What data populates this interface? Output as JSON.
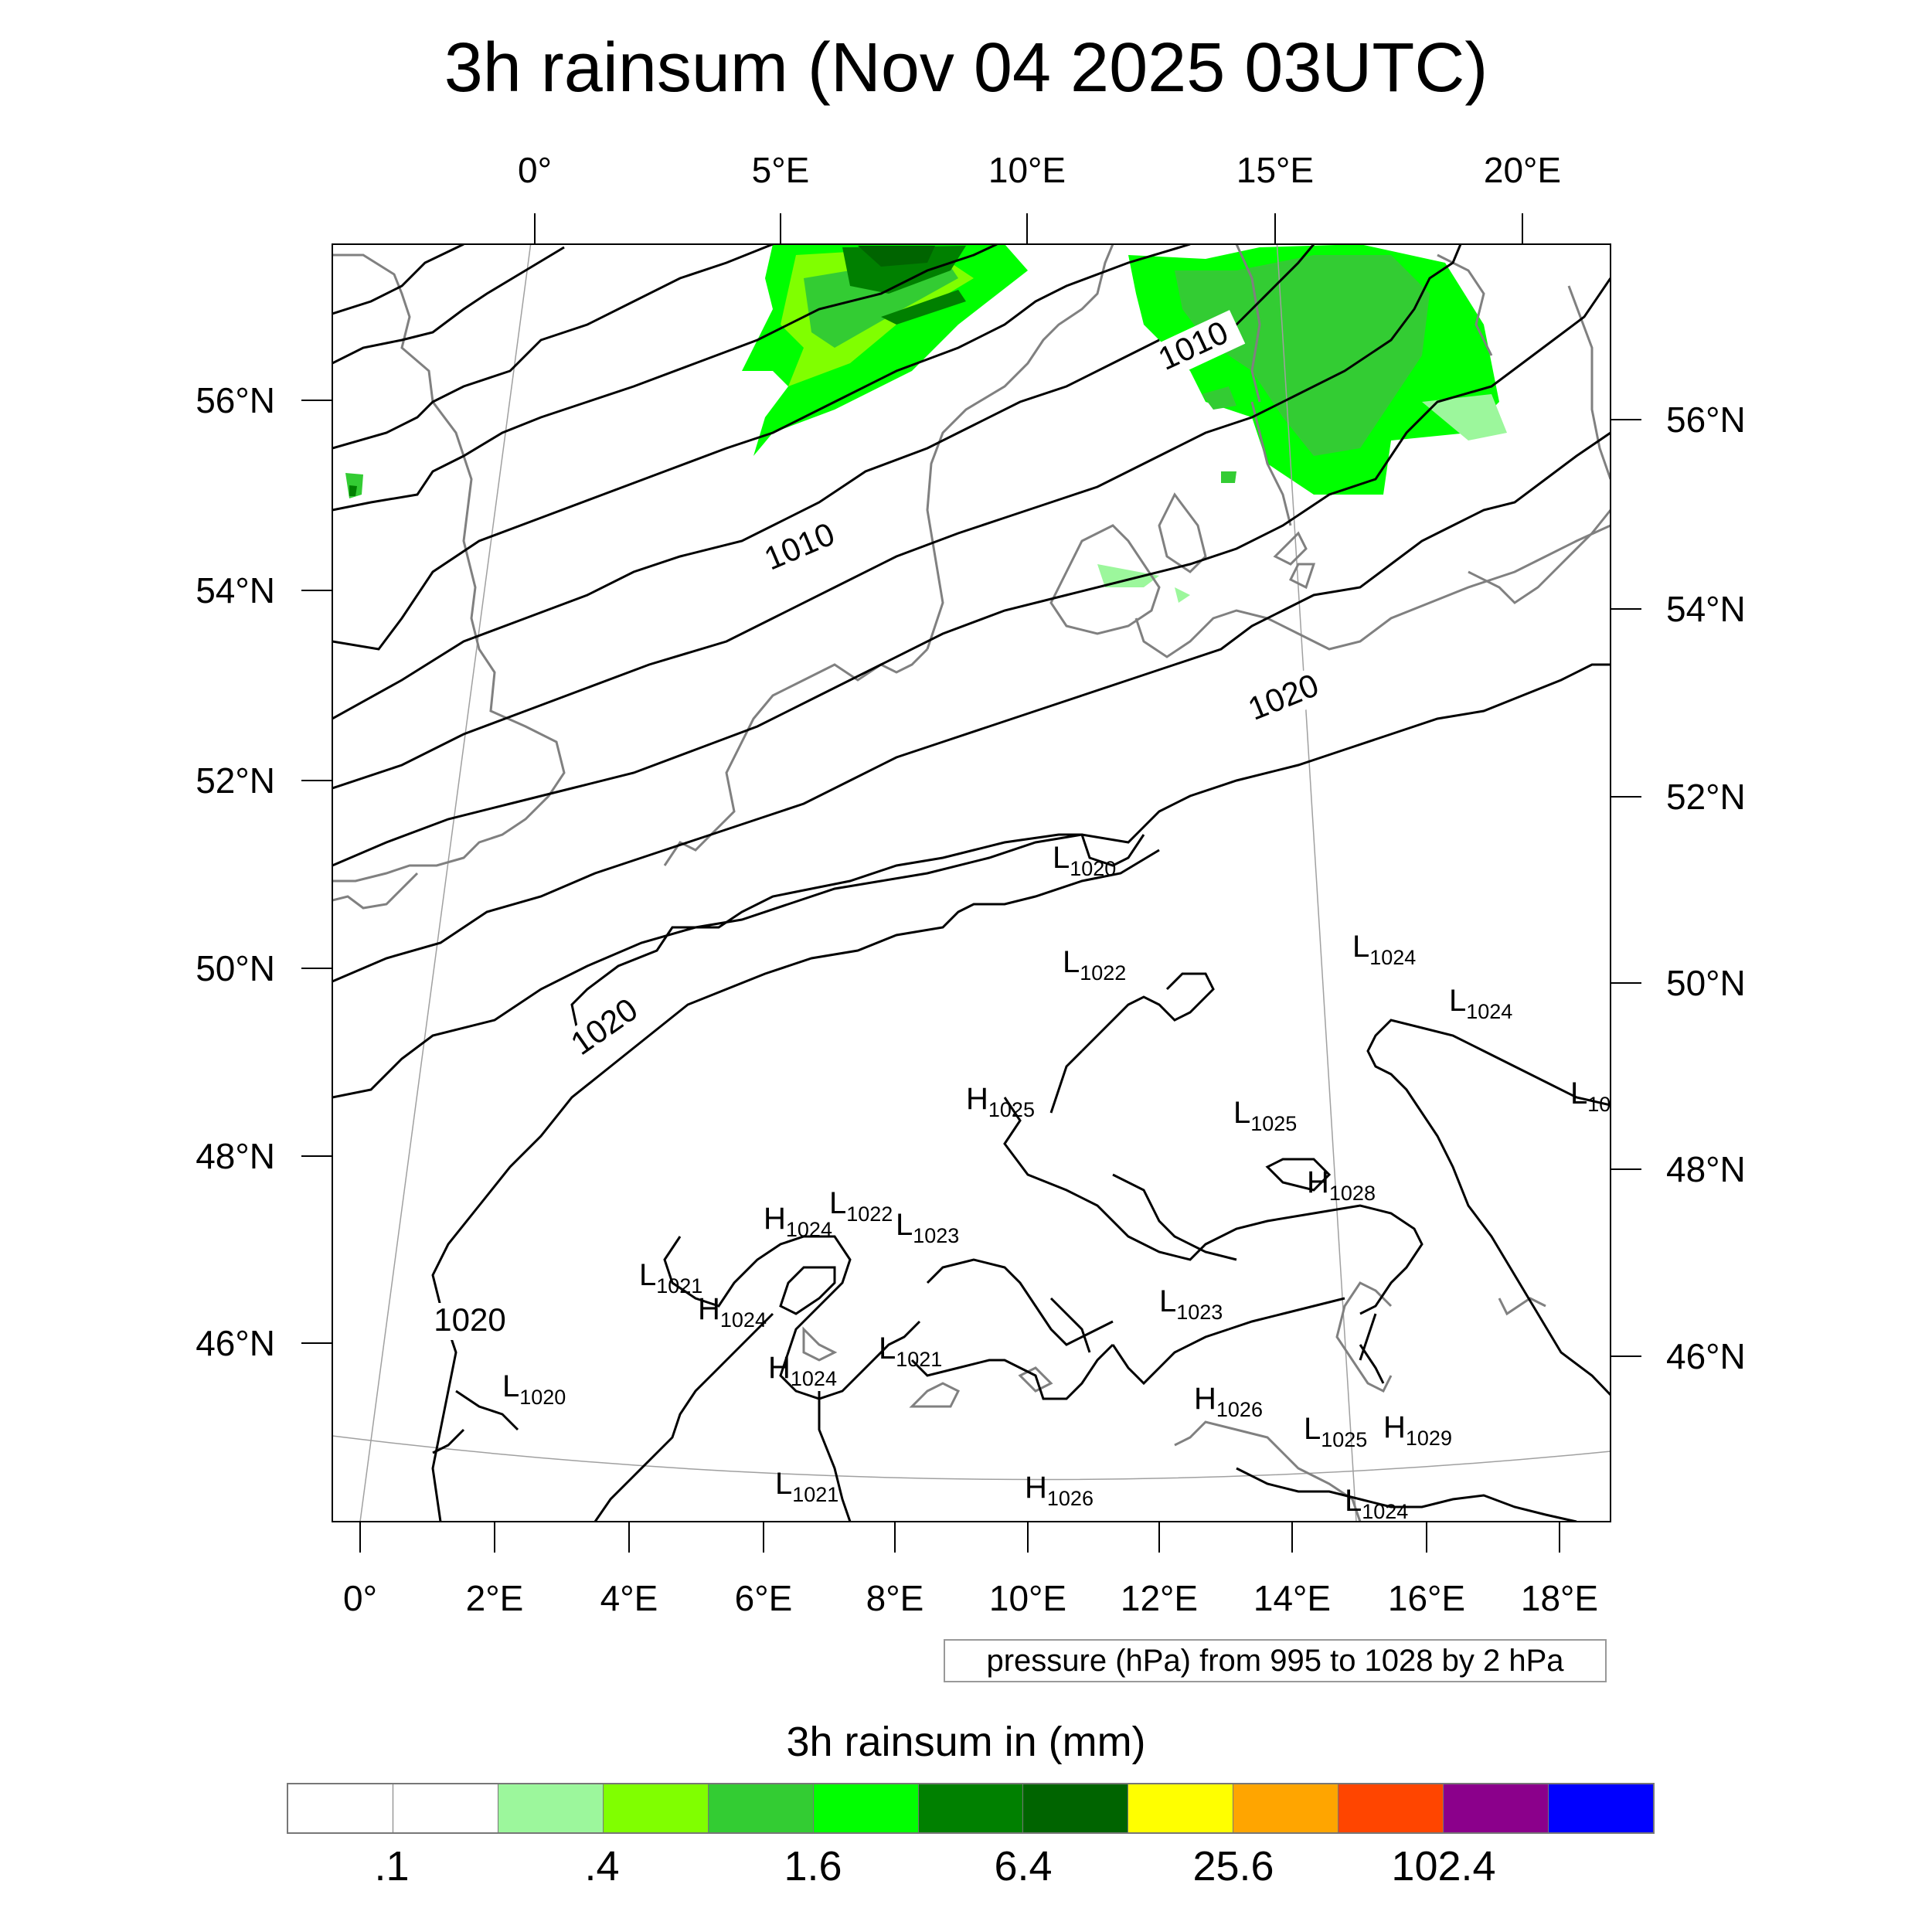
{
  "title": "3h rainsum (Nov 04 2025 03UTC)",
  "map": {
    "top_lon_labels": [
      "0°",
      "5°E",
      "10°E",
      "15°E",
      "20°E"
    ],
    "bottom_lon_labels": [
      "0°",
      "2°E",
      "4°E",
      "6°E",
      "8°E",
      "10°E",
      "12°E",
      "14°E",
      "16°E",
      "18°E"
    ],
    "left_lat_labels": [
      "56°N",
      "54°N",
      "52°N",
      "50°N",
      "48°N",
      "46°N"
    ],
    "right_lat_labels": [
      "56°N",
      "54°N",
      "52°N",
      "50°N",
      "48°N",
      "46°N"
    ],
    "isobar_labels": [
      "1010",
      "1010",
      "1020",
      "1020",
      "1020"
    ],
    "pressure_centers": [
      {
        "type": "L",
        "value": "1020"
      },
      {
        "type": "L",
        "value": "1022"
      },
      {
        "type": "L",
        "value": "1024"
      },
      {
        "type": "L",
        "value": "1024"
      },
      {
        "type": "L",
        "value": "10"
      },
      {
        "type": "H",
        "value": "1025"
      },
      {
        "type": "L",
        "value": "1025"
      },
      {
        "type": "H",
        "value": "1028"
      },
      {
        "type": "H",
        "value": "1024"
      },
      {
        "type": "L",
        "value": "1022"
      },
      {
        "type": "L",
        "value": "1023"
      },
      {
        "type": "L",
        "value": "1021"
      },
      {
        "type": "H",
        "value": "1024"
      },
      {
        "type": "L",
        "value": "1023"
      },
      {
        "type": "H",
        "value": "1024"
      },
      {
        "type": "L",
        "value": "1021"
      },
      {
        "type": "L",
        "value": "1020"
      },
      {
        "type": "H",
        "value": "1026"
      },
      {
        "type": "L",
        "value": "1025"
      },
      {
        "type": "H",
        "value": "1029"
      },
      {
        "type": "L",
        "value": "1021"
      },
      {
        "type": "H",
        "value": "1026"
      },
      {
        "type": "L",
        "value": "1024"
      }
    ],
    "colors": {
      "isobar": "#000000",
      "coastline": "#808080",
      "gridline": "#a0a0a0"
    }
  },
  "pressure_note": "pressure (hPa) from 995 to 1028 by 2 hPa",
  "colorbar": {
    "title": "3h rainsum in (mm)",
    "colors": [
      "#ffffff",
      "#ffffff",
      "#9cf79c",
      "#80ff00",
      "#33cc33",
      "#00ff00",
      "#008000",
      "#006400",
      "#ffff00",
      "#ffa500",
      "#ff4500",
      "#8b008b",
      "#0000ff"
    ],
    "labels": [
      ".1",
      ".4",
      "1.6",
      "6.4",
      "25.6",
      "102.4"
    ]
  }
}
